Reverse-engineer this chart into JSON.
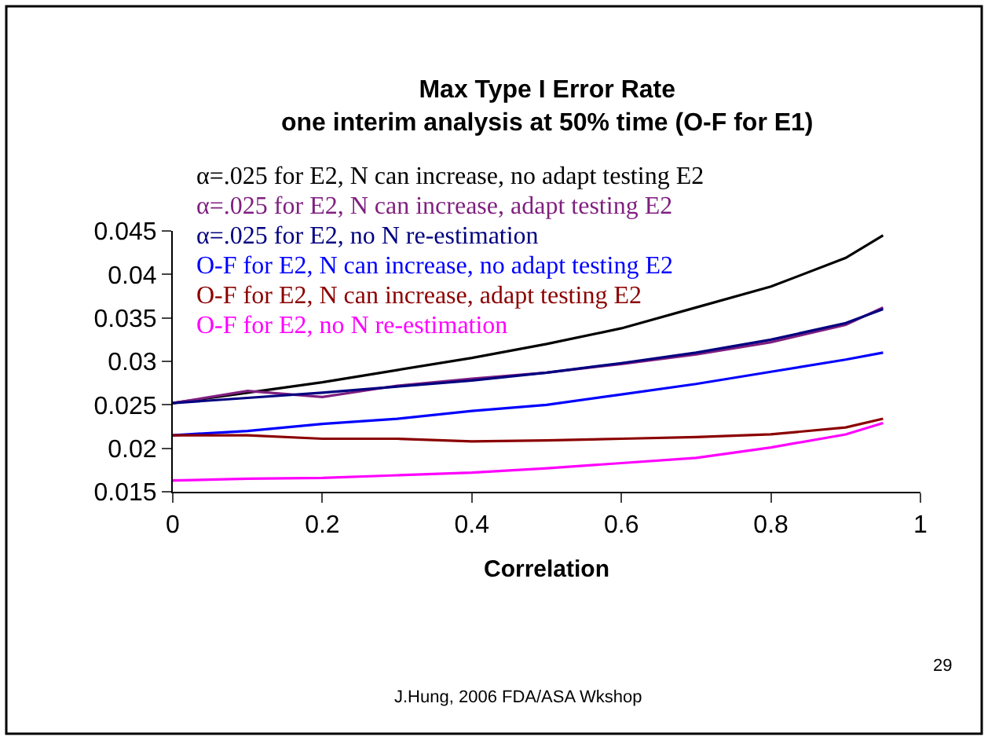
{
  "chart_data": {
    "type": "line",
    "title": "Max Type I Error Rate\none interim analysis at 50% time (O-F for E1)",
    "xlabel": "Correlation",
    "x": [
      0,
      0.1,
      0.2,
      0.3,
      0.4,
      0.5,
      0.6,
      0.7,
      0.8,
      0.9,
      0.95
    ],
    "series": [
      {
        "name": "α=.025 for E2, N can increase, no adapt testing E2",
        "color": "#000000",
        "values": [
          0.0252,
          0.0264,
          0.0276,
          0.029,
          0.0304,
          0.032,
          0.0338,
          0.0362,
          0.0386,
          0.0419,
          0.0445
        ]
      },
      {
        "name": "α=.025 for E2, N can increase, adapt testing E2",
        "color": "#7f1f7f",
        "values": [
          0.0252,
          0.0266,
          0.0259,
          0.0272,
          0.028,
          0.0287,
          0.0297,
          0.0308,
          0.0322,
          0.0342,
          0.0362
        ]
      },
      {
        "name": "α=.025 for E2, no N re-estimation",
        "color": "#000080",
        "values": [
          0.0252,
          0.0258,
          0.0264,
          0.0271,
          0.0278,
          0.0287,
          0.0298,
          0.031,
          0.0325,
          0.0344,
          0.036
        ]
      },
      {
        "name": "O-F for E2, N can increase, no adapt testing E2",
        "color": "#0000ff",
        "values": [
          0.0215,
          0.022,
          0.0228,
          0.0234,
          0.0243,
          0.025,
          0.0262,
          0.0274,
          0.0288,
          0.0302,
          0.031
        ]
      },
      {
        "name": "O-F for E2, N can increase, adapt testing E2",
        "color": "#8b0000",
        "values": [
          0.0215,
          0.0215,
          0.0211,
          0.0211,
          0.0208,
          0.0209,
          0.0211,
          0.0213,
          0.0216,
          0.0224,
          0.0234
        ]
      },
      {
        "name": "O-F for E2, no N re-estimation",
        "color": "#ff00ff",
        "values": [
          0.0163,
          0.0165,
          0.0166,
          0.0169,
          0.0172,
          0.0177,
          0.0183,
          0.0189,
          0.0201,
          0.0216,
          0.0229
        ]
      }
    ],
    "xlim": [
      0,
      1
    ],
    "xticks": [
      0,
      0.2,
      0.4,
      0.6,
      0.8,
      1
    ],
    "ylim": [
      0.015,
      0.045
    ],
    "yticks": [
      0.015,
      0.02,
      0.025,
      0.03,
      0.035,
      0.04,
      0.045
    ],
    "marker": "none",
    "line_style": "solid",
    "annotations": [
      "J.Hung, 2006 FDA/ASA Wkshop",
      "29"
    ]
  }
}
